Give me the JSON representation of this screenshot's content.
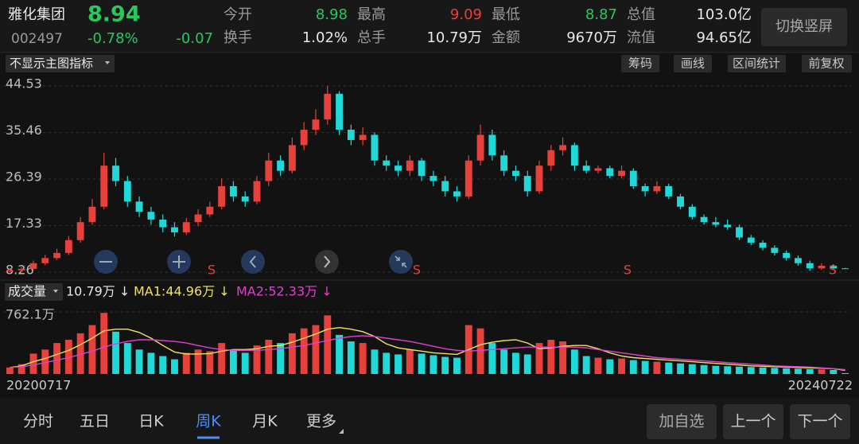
{
  "header": {
    "name": "雅化集团",
    "price": "8.94",
    "code": "002497",
    "change_pct": "-0.78%",
    "change": "-0.07",
    "stats": [
      {
        "label": "今开",
        "value": "8.98"
      },
      {
        "label": "最高",
        "value": "9.09"
      },
      {
        "label": "最低",
        "value": "8.87"
      },
      {
        "label": "总值",
        "value": "103.0亿"
      },
      {
        "label": "换手",
        "value": "1.02%"
      },
      {
        "label": "总手",
        "value": "10.79万"
      },
      {
        "label": "金额",
        "value": "9670万"
      },
      {
        "label": "流值",
        "value": "94.65亿"
      }
    ],
    "button": "切换竖屏"
  },
  "toolbar": {
    "indicator": "不显示主图指标",
    "buttons": [
      "筹码",
      "画线",
      "区间统计",
      "前复权"
    ]
  },
  "chart_data": [
    {
      "type": "candlestick",
      "open": [
        8.4,
        8.6,
        8.9,
        10,
        11,
        12,
        14.5,
        18,
        21,
        29,
        26,
        22,
        20,
        18.5,
        17,
        16,
        18,
        19.5,
        21,
        25,
        23,
        22,
        26,
        30,
        28,
        33,
        36,
        38,
        43,
        36,
        34,
        35,
        30,
        29,
        28,
        30,
        27,
        26,
        24,
        23,
        30,
        35,
        31,
        28,
        27,
        24,
        29,
        32,
        33,
        29,
        28,
        28.5,
        27,
        28,
        25,
        24,
        25,
        23,
        21,
        19,
        18,
        17.5,
        17,
        15,
        14,
        13,
        12,
        11,
        10,
        9,
        9.5,
        9
      ],
      "close": [
        8.6,
        8.9,
        10,
        11,
        12,
        14.5,
        18,
        21,
        29,
        26,
        22,
        20,
        18.5,
        17,
        16,
        18,
        19.5,
        21,
        25,
        23,
        22,
        26,
        30,
        28,
        33,
        36,
        38,
        43,
        36,
        34,
        35,
        30,
        29,
        28,
        30,
        27,
        26,
        24,
        23,
        30,
        35,
        31,
        28,
        27,
        24,
        29,
        32,
        33,
        29,
        28,
        28.5,
        27,
        28,
        25,
        24,
        25,
        23,
        21,
        19,
        18,
        17.5,
        17,
        15,
        14,
        13,
        12,
        11,
        10,
        9,
        9.5,
        9,
        8.94
      ],
      "high": [
        9,
        9.3,
        10.5,
        11.6,
        12.8,
        15.3,
        19,
        22.5,
        31.5,
        30.5,
        27,
        23,
        21,
        19.5,
        18,
        18.8,
        20.5,
        22,
        26.5,
        26,
        24,
        27,
        31.5,
        31,
        34.5,
        37.5,
        40,
        44.53,
        43.5,
        37,
        36.5,
        35.5,
        31,
        30,
        31,
        30.5,
        28,
        27,
        25,
        31,
        37,
        36,
        32,
        29,
        28,
        30,
        33,
        34.5,
        33.5,
        30,
        29,
        29,
        29,
        28.5,
        25.5,
        26,
        25.5,
        23.5,
        21.5,
        19.5,
        19,
        18.5,
        17.5,
        15.5,
        14.5,
        13.5,
        12.5,
        11.5,
        10.5,
        10,
        9.8,
        9.09
      ],
      "low": [
        8.26,
        8.4,
        8.7,
        9.6,
        10.6,
        11.6,
        14,
        17.5,
        20.5,
        25,
        21,
        19,
        17.5,
        16,
        15.2,
        15.5,
        17.2,
        19,
        20.5,
        22,
        21,
        21.5,
        25,
        27,
        27.5,
        32,
        35,
        37,
        35,
        33,
        33,
        29,
        28,
        27,
        27,
        26,
        25,
        23,
        22,
        22.5,
        29,
        30,
        27,
        26,
        23,
        23.5,
        28,
        31,
        28,
        27.5,
        27.5,
        26.5,
        26.5,
        24.5,
        23,
        23.5,
        22.5,
        20.5,
        18.5,
        17.5,
        17,
        16.5,
        14.5,
        13.5,
        12.5,
        11.5,
        10.5,
        9.5,
        8.5,
        8.7,
        8.7,
        8.87
      ],
      "ylim": [
        8.26,
        44.53
      ],
      "yticks": [
        8.26,
        17.33,
        26.39,
        35.46,
        44.53
      ],
      "grid": true,
      "up_color": "#e8403a",
      "down_color": "#1fd8d8",
      "annotations": [
        "S",
        "S",
        "S",
        "S"
      ]
    },
    {
      "type": "bar",
      "title": "成交量",
      "value_label": "10.79万 ↓",
      "values": [
        80,
        120,
        250,
        300,
        380,
        420,
        500,
        600,
        750,
        520,
        380,
        300,
        260,
        220,
        180,
        260,
        300,
        280,
        380,
        300,
        260,
        350,
        420,
        380,
        500,
        560,
        600,
        720,
        480,
        400,
        380,
        300,
        260,
        240,
        300,
        250,
        230,
        210,
        200,
        600,
        560,
        380,
        300,
        260,
        240,
        380,
        420,
        400,
        300,
        220,
        200,
        180,
        190,
        170,
        160,
        150,
        140,
        130,
        120,
        110,
        100,
        95,
        90,
        85,
        80,
        75,
        70,
        65,
        60,
        55,
        50,
        10.79
      ],
      "series": [
        {
          "name": "MA1:44.96万 ↓",
          "color": "#f2e25c",
          "values": [
            80,
            100,
            150,
            190,
            240,
            290,
            360,
            440,
            530,
            550,
            550,
            510,
            440,
            350,
            270,
            245,
            245,
            250,
            280,
            300,
            300,
            310,
            340,
            350,
            390,
            440,
            490,
            550,
            570,
            550,
            520,
            460,
            370,
            320,
            300,
            280,
            260,
            250,
            240,
            300,
            360,
            390,
            410,
            420,
            380,
            310,
            320,
            340,
            350,
            350,
            310,
            260,
            220,
            200,
            190,
            180,
            170,
            160,
            150,
            140,
            130,
            120,
            110,
            100,
            95,
            90,
            85,
            80,
            75,
            70,
            65,
            44.96
          ]
        },
        {
          "name": "MA2:52.33万 ↓",
          "color": "#e040d0",
          "values": [
            80,
            90,
            110,
            140,
            170,
            200,
            240,
            280,
            330,
            370,
            400,
            420,
            420,
            410,
            400,
            380,
            350,
            320,
            300,
            290,
            290,
            290,
            300,
            310,
            330,
            350,
            380,
            410,
            440,
            460,
            470,
            460,
            440,
            420,
            400,
            370,
            340,
            310,
            290,
            280,
            290,
            300,
            310,
            320,
            330,
            330,
            330,
            330,
            330,
            320,
            300,
            280,
            260,
            240,
            220,
            200,
            190,
            180,
            170,
            160,
            150,
            140,
            130,
            120,
            110,
            100,
            95,
            90,
            85,
            75,
            65,
            52.33
          ]
        }
      ],
      "ylim": [
        0,
        762.1
      ],
      "yticks": [
        {
          "value": 762.1,
          "label": "762.1万"
        }
      ],
      "x_labels": [
        "20200717",
        "20240722"
      ]
    }
  ],
  "tabs": [
    "分时",
    "五日",
    "日K",
    "周K",
    "月K",
    "更多"
  ],
  "actions": [
    "加自选",
    "上一个",
    "下一个"
  ]
}
